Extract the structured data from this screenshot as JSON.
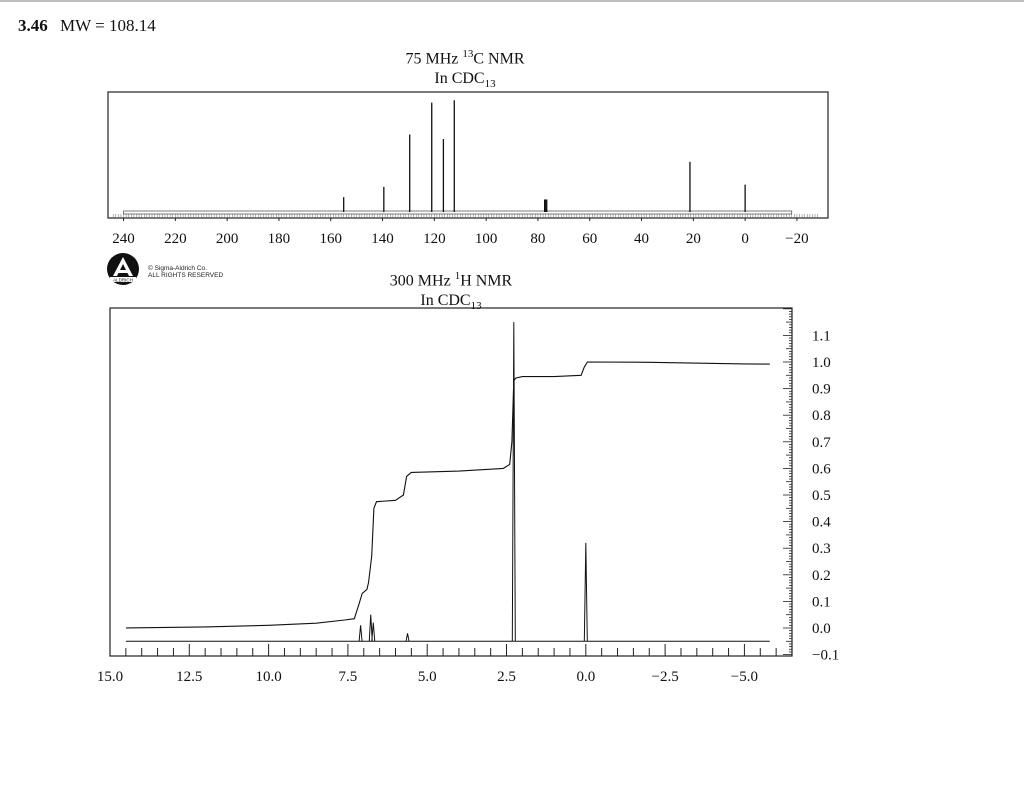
{
  "header": {
    "compound_number": "3.46",
    "molecular_weight": "MW = 108.14"
  },
  "logo": {
    "copyright_line1": "© Sigma-Aldrich Co.",
    "copyright_line2": "ALL RIGHTS RESERVED",
    "brand": "ALDRICH"
  },
  "chart_data": [
    {
      "type": "line",
      "chart_kind": "13C NMR spectrum",
      "title": "75 MHz 13C NMR",
      "subtitle": "In CDC13",
      "xlabel": "",
      "ylabel": "",
      "x_reversed": true,
      "xlim": [
        246,
        -32
      ],
      "x_ticks": [
        240,
        220,
        200,
        180,
        160,
        140,
        120,
        100,
        80,
        60,
        40,
        20,
        0,
        -20
      ],
      "x_tick_labels": [
        "240",
        "220",
        "200",
        "180",
        "160",
        "140",
        "120",
        "100",
        "80",
        "60",
        "40",
        "20",
        "0",
        "−20"
      ],
      "peaks": [
        {
          "ppm": 155.0,
          "intensity": 0.13
        },
        {
          "ppm": 139.5,
          "intensity": 0.22
        },
        {
          "ppm": 129.5,
          "intensity": 0.68
        },
        {
          "ppm": 121.0,
          "intensity": 0.96
        },
        {
          "ppm": 116.5,
          "intensity": 0.64
        },
        {
          "ppm": 112.3,
          "intensity": 0.98
        },
        {
          "ppm": 77.4,
          "intensity": 0.11
        },
        {
          "ppm": 77.0,
          "intensity": 0.11
        },
        {
          "ppm": 76.6,
          "intensity": 0.11
        },
        {
          "ppm": 21.3,
          "intensity": 0.44
        },
        {
          "ppm": 0.0,
          "intensity": 0.24
        }
      ]
    },
    {
      "type": "line",
      "chart_kind": "1H NMR spectrum",
      "title": "300 MHz 1H NMR",
      "subtitle": "In CDC13",
      "xlabel": "",
      "ylabel": "",
      "x_reversed": true,
      "xlim": [
        15.0,
        -6.5
      ],
      "ylim": [
        -0.1,
        1.2
      ],
      "x_ticks": [
        15.0,
        12.5,
        10.0,
        7.5,
        5.0,
        2.5,
        0.0,
        -2.5,
        -5.0
      ],
      "x_tick_labels": [
        "15.0",
        "12.5",
        "10.0",
        "7.5",
        "5.0",
        "2.5",
        "0.0",
        "−2.5",
        "−5.0"
      ],
      "y_ticks": [
        -0.1,
        0.0,
        0.1,
        0.2,
        0.3,
        0.4,
        0.5,
        0.6,
        0.7,
        0.8,
        0.9,
        1.0,
        1.1
      ],
      "y_tick_labels": [
        "−0.1",
        "0.0",
        "0.1",
        "0.2",
        "0.3",
        "0.4",
        "0.5",
        "0.6",
        "0.7",
        "0.8",
        "0.9",
        "1.0",
        "1.1"
      ],
      "baseline": -0.05,
      "peaks": [
        {
          "ppm": 7.1,
          "height": 0.06
        },
        {
          "ppm": 6.78,
          "height": 0.1
        },
        {
          "ppm": 6.7,
          "height": 0.07
        },
        {
          "ppm": 5.62,
          "height": 0.03
        },
        {
          "ppm": 2.27,
          "height": 1.2
        },
        {
          "ppm": 0.0,
          "height": 0.37
        }
      ],
      "integral_curve": {
        "x": [
          14.5,
          12.0,
          10.0,
          8.5,
          7.6,
          7.3,
          7.15,
          7.05,
          6.9,
          6.85,
          6.75,
          6.68,
          6.6,
          6.0,
          5.75,
          5.65,
          5.5,
          4.0,
          2.6,
          2.4,
          2.33,
          2.27,
          2.2,
          2.0,
          1.0,
          0.15,
          0.05,
          -0.05,
          -2.0,
          -5.0,
          -5.8
        ],
        "y": [
          0.0,
          0.004,
          0.01,
          0.018,
          0.03,
          0.035,
          0.09,
          0.13,
          0.145,
          0.17,
          0.27,
          0.45,
          0.475,
          0.48,
          0.5,
          0.57,
          0.585,
          0.59,
          0.6,
          0.615,
          0.7,
          0.93,
          0.94,
          0.945,
          0.945,
          0.95,
          0.98,
          1.0,
          0.999,
          0.993,
          0.992
        ]
      }
    }
  ]
}
